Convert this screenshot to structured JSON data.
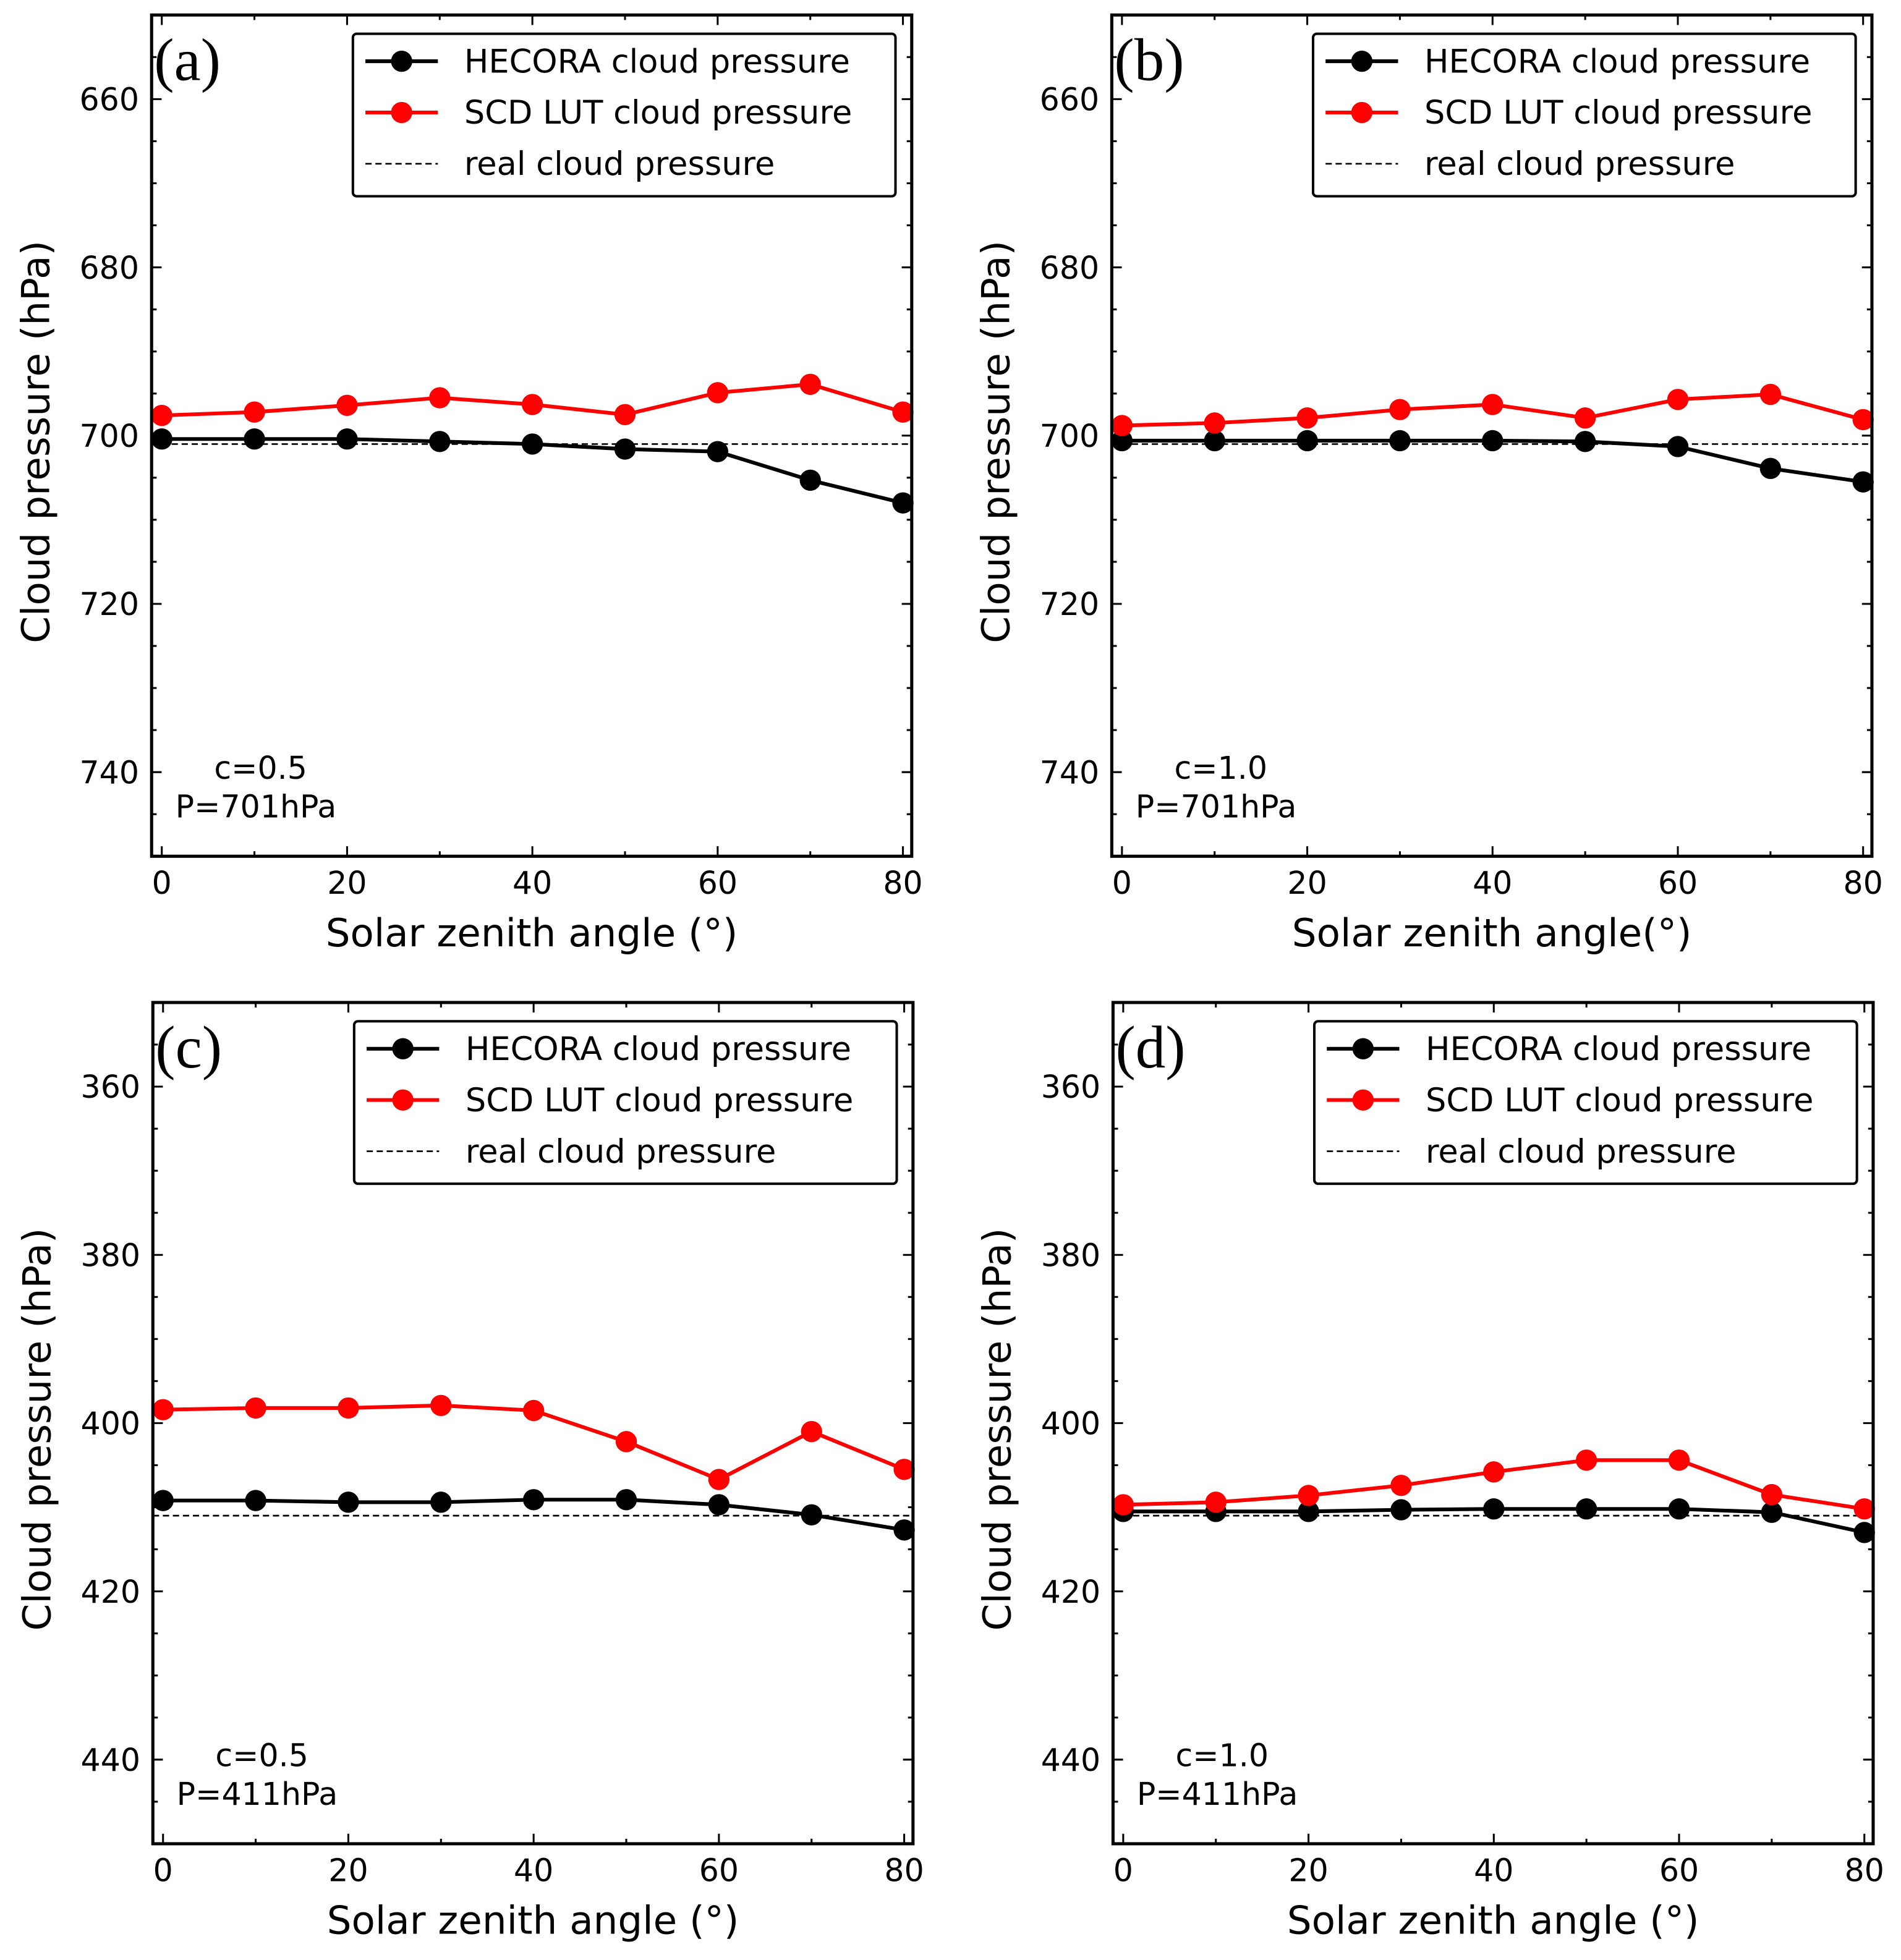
{
  "chart_data": [
    {
      "type": "line",
      "panel_label": "(a)",
      "xlabel": "Solar zenith angle (°)",
      "ylabel": "Cloud pressure (hPa)",
      "xlim": [
        -1.1,
        80.95
      ],
      "ylim": [
        750,
        650
      ],
      "y_inverted": true,
      "xticks": [
        "0",
        "20",
        "40",
        "60",
        "80"
      ],
      "yticks": [
        "660",
        "680",
        "700",
        "720",
        "740"
      ],
      "annotation": [
        "c=0.5",
        "P=701hPa"
      ],
      "legend": [
        "HECORA cloud pressure",
        "SCD LUT cloud pressure",
        "real cloud pressure"
      ],
      "legend_position": "top-right",
      "x": [
        0,
        10,
        20,
        30,
        40,
        50,
        60,
        70,
        80
      ],
      "series": [
        {
          "name": "HECORA cloud pressure",
          "color": "#000000",
          "values": [
            700.4,
            700.4,
            700.4,
            700.7,
            701.0,
            701.6,
            701.9,
            705.3,
            708.0
          ]
        },
        {
          "name": "SCD LUT cloud pressure",
          "color": "#ff0000",
          "values": [
            697.6,
            697.2,
            696.4,
            695.5,
            696.3,
            697.5,
            694.9,
            693.9,
            697.2
          ]
        }
      ],
      "reference": {
        "name": "real cloud pressure",
        "value": 701
      }
    },
    {
      "type": "line",
      "panel_label": "(b)",
      "xlabel": "Solar zenith angle(°)",
      "ylabel": "Cloud pressure (hPa)",
      "xlim": [
        -1.1,
        80.95
      ],
      "ylim": [
        750,
        650
      ],
      "y_inverted": true,
      "xticks": [
        "0",
        "20",
        "40",
        "60",
        "80"
      ],
      "yticks": [
        "660",
        "680",
        "700",
        "720",
        "740"
      ],
      "annotation": [
        "c=1.0",
        "P=701hPa"
      ],
      "legend": [
        "HECORA cloud pressure",
        "SCD LUT cloud pressure",
        "real cloud pressure"
      ],
      "legend_position": "top-right",
      "x": [
        0,
        10,
        20,
        30,
        40,
        50,
        60,
        70,
        80
      ],
      "series": [
        {
          "name": "HECORA cloud pressure",
          "color": "#000000",
          "values": [
            700.6,
            700.6,
            700.6,
            700.6,
            700.6,
            700.7,
            701.3,
            703.9,
            705.5
          ]
        },
        {
          "name": "SCD LUT cloud pressure",
          "color": "#ff0000",
          "values": [
            698.8,
            698.5,
            697.9,
            696.9,
            696.3,
            697.9,
            695.7,
            695.1,
            698.1
          ]
        }
      ],
      "reference": {
        "name": "real cloud pressure",
        "value": 701
      }
    },
    {
      "type": "line",
      "panel_label": "(c)",
      "xlabel": "Solar zenith angle (°)",
      "ylabel": "Cloud pressure (hPa)",
      "xlim": [
        -1.1,
        80.95
      ],
      "ylim": [
        450,
        350
      ],
      "y_inverted": true,
      "xticks": [
        "0",
        "20",
        "40",
        "60",
        "80"
      ],
      "yticks": [
        "360",
        "380",
        "400",
        "420",
        "440"
      ],
      "annotation": [
        "c=0.5",
        "P=411hPa"
      ],
      "legend": [
        "HECORA cloud pressure",
        "SCD LUT cloud pressure",
        "real cloud pressure"
      ],
      "legend_position": "top-right",
      "x": [
        0,
        10,
        20,
        30,
        40,
        50,
        60,
        70,
        80
      ],
      "series": [
        {
          "name": "HECORA cloud pressure",
          "color": "#000000",
          "values": [
            409.2,
            409.2,
            409.4,
            409.4,
            409.1,
            409.1,
            409.7,
            410.9,
            412.7
          ]
        },
        {
          "name": "SCD LUT cloud pressure",
          "color": "#ff0000",
          "values": [
            398.4,
            398.2,
            398.2,
            397.9,
            398.5,
            402.2,
            406.7,
            401.0,
            405.5
          ]
        }
      ],
      "reference": {
        "name": "real cloud pressure",
        "value": 411
      }
    },
    {
      "type": "line",
      "panel_label": "(d)",
      "xlabel": "Solar zenith angle (°)",
      "ylabel": "Cloud pressure (hPa)",
      "xlim": [
        -1.1,
        80.95
      ],
      "ylim": [
        450,
        350
      ],
      "y_inverted": true,
      "xticks": [
        "0",
        "20",
        "40",
        "60",
        "80"
      ],
      "yticks": [
        "360",
        "380",
        "400",
        "420",
        "440"
      ],
      "annotation": [
        "c=1.0",
        "P=411hPa"
      ],
      "legend": [
        "HECORA cloud pressure",
        "SCD LUT cloud pressure",
        "real cloud pressure"
      ],
      "legend_position": "top-right",
      "x": [
        0,
        10,
        20,
        30,
        40,
        50,
        60,
        70,
        80
      ],
      "series": [
        {
          "name": "HECORA cloud pressure",
          "color": "#000000",
          "values": [
            410.5,
            410.5,
            410.5,
            410.3,
            410.2,
            410.2,
            410.2,
            410.6,
            413.0
          ]
        },
        {
          "name": "SCD LUT cloud pressure",
          "color": "#ff0000",
          "values": [
            409.7,
            409.4,
            408.6,
            407.4,
            405.8,
            404.4,
            404.4,
            408.5,
            410.2
          ]
        }
      ],
      "reference": {
        "name": "real cloud pressure",
        "value": 411
      }
    }
  ]
}
